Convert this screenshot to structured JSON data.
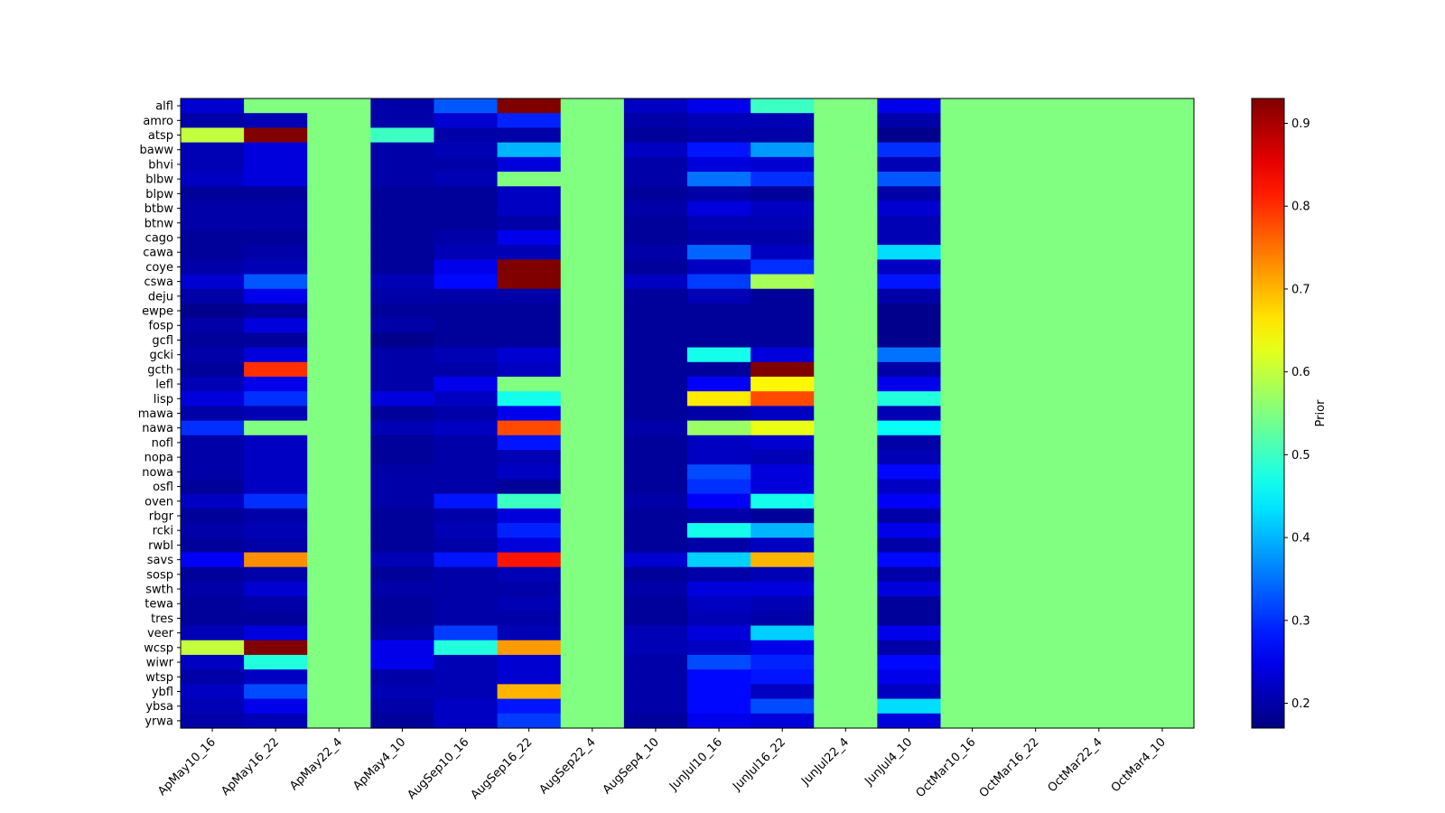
{
  "chart_data": {
    "type": "heatmap",
    "colormap": "jet",
    "categories_x": [
      "ApMay10_16",
      "ApMay16_22",
      "ApMay22_4",
      "ApMay4_10",
      "AugSep10_16",
      "AugSep16_22",
      "AugSep22_4",
      "AugSep4_10",
      "JunJul10_16",
      "JunJul16_22",
      "JunJul22_4",
      "JunJul4_10",
      "OctMar10_16",
      "OctMar16_22",
      "OctMar22_4",
      "OctMar4_10"
    ],
    "categories_y": [
      "alfl",
      "amro",
      "atsp",
      "baww",
      "bhvi",
      "blbw",
      "blpw",
      "btbw",
      "btnw",
      "cago",
      "cawa",
      "coye",
      "cswa",
      "deju",
      "ewpe",
      "fosp",
      "gcfl",
      "gcki",
      "gcth",
      "lefl",
      "lisp",
      "mawa",
      "nawa",
      "nofl",
      "nopa",
      "nowa",
      "osfl",
      "oven",
      "rbgr",
      "rcki",
      "rwbl",
      "savs",
      "sosp",
      "swth",
      "tewa",
      "tres",
      "veer",
      "wcsp",
      "wiwr",
      "wtsp",
      "ybfl",
      "ybsa",
      "yrwa"
    ],
    "values": [
      [
        0.23,
        0.55,
        0.55,
        0.2,
        0.33,
        0.93,
        0.55,
        0.22,
        0.25,
        0.5,
        0.55,
        0.25,
        0.55,
        0.55,
        0.55,
        0.55
      ],
      [
        0.2,
        0.21,
        0.55,
        0.2,
        0.23,
        0.29,
        0.55,
        0.2,
        0.21,
        0.21,
        0.55,
        0.2,
        0.55,
        0.55,
        0.55,
        0.55
      ],
      [
        0.6,
        0.93,
        0.55,
        0.5,
        0.2,
        0.2,
        0.55,
        0.19,
        0.2,
        0.2,
        0.55,
        0.18,
        0.55,
        0.55,
        0.55,
        0.55
      ],
      [
        0.21,
        0.24,
        0.55,
        0.2,
        0.21,
        0.4,
        0.55,
        0.22,
        0.28,
        0.38,
        0.55,
        0.3,
        0.55,
        0.55,
        0.55,
        0.55
      ],
      [
        0.21,
        0.24,
        0.55,
        0.2,
        0.2,
        0.24,
        0.55,
        0.2,
        0.24,
        0.23,
        0.55,
        0.21,
        0.55,
        0.55,
        0.55,
        0.55
      ],
      [
        0.22,
        0.24,
        0.55,
        0.2,
        0.21,
        0.55,
        0.55,
        0.2,
        0.35,
        0.3,
        0.55,
        0.33,
        0.55,
        0.55,
        0.55,
        0.55
      ],
      [
        0.19,
        0.19,
        0.55,
        0.19,
        0.19,
        0.22,
        0.55,
        0.19,
        0.2,
        0.19,
        0.55,
        0.2,
        0.55,
        0.55,
        0.55,
        0.55
      ],
      [
        0.2,
        0.2,
        0.55,
        0.19,
        0.19,
        0.22,
        0.55,
        0.2,
        0.24,
        0.22,
        0.55,
        0.23,
        0.55,
        0.55,
        0.55,
        0.55
      ],
      [
        0.2,
        0.2,
        0.55,
        0.19,
        0.19,
        0.2,
        0.55,
        0.19,
        0.21,
        0.21,
        0.55,
        0.21,
        0.55,
        0.55,
        0.55,
        0.55
      ],
      [
        0.19,
        0.19,
        0.55,
        0.19,
        0.2,
        0.25,
        0.55,
        0.19,
        0.2,
        0.2,
        0.55,
        0.21,
        0.55,
        0.55,
        0.55,
        0.55
      ],
      [
        0.19,
        0.2,
        0.55,
        0.19,
        0.21,
        0.21,
        0.55,
        0.2,
        0.34,
        0.22,
        0.55,
        0.43,
        0.55,
        0.55,
        0.55,
        0.55
      ],
      [
        0.2,
        0.21,
        0.55,
        0.19,
        0.25,
        0.93,
        0.55,
        0.19,
        0.22,
        0.3,
        0.55,
        0.22,
        0.55,
        0.55,
        0.55,
        0.55
      ],
      [
        0.23,
        0.33,
        0.55,
        0.21,
        0.27,
        0.93,
        0.55,
        0.22,
        0.31,
        0.58,
        0.55,
        0.28,
        0.55,
        0.55,
        0.55,
        0.55
      ],
      [
        0.2,
        0.25,
        0.55,
        0.2,
        0.2,
        0.2,
        0.55,
        0.19,
        0.21,
        0.19,
        0.55,
        0.2,
        0.55,
        0.55,
        0.55,
        0.55
      ],
      [
        0.18,
        0.19,
        0.55,
        0.19,
        0.19,
        0.19,
        0.55,
        0.19,
        0.19,
        0.19,
        0.55,
        0.18,
        0.55,
        0.55,
        0.55,
        0.55
      ],
      [
        0.2,
        0.24,
        0.55,
        0.2,
        0.19,
        0.19,
        0.55,
        0.19,
        0.19,
        0.19,
        0.55,
        0.18,
        0.55,
        0.55,
        0.55,
        0.55
      ],
      [
        0.19,
        0.19,
        0.55,
        0.18,
        0.19,
        0.19,
        0.55,
        0.19,
        0.19,
        0.19,
        0.55,
        0.18,
        0.55,
        0.55,
        0.55,
        0.55
      ],
      [
        0.2,
        0.24,
        0.55,
        0.2,
        0.21,
        0.23,
        0.55,
        0.19,
        0.47,
        0.24,
        0.55,
        0.35,
        0.55,
        0.55,
        0.55,
        0.55
      ],
      [
        0.19,
        0.8,
        0.55,
        0.2,
        0.2,
        0.22,
        0.55,
        0.19,
        0.19,
        0.93,
        0.55,
        0.2,
        0.55,
        0.55,
        0.55,
        0.55
      ],
      [
        0.21,
        0.25,
        0.55,
        0.2,
        0.25,
        0.55,
        0.55,
        0.19,
        0.26,
        0.65,
        0.55,
        0.25,
        0.55,
        0.55,
        0.55,
        0.55
      ],
      [
        0.24,
        0.3,
        0.55,
        0.24,
        0.22,
        0.47,
        0.55,
        0.19,
        0.66,
        0.78,
        0.55,
        0.48,
        0.55,
        0.55,
        0.55,
        0.55
      ],
      [
        0.2,
        0.21,
        0.55,
        0.19,
        0.2,
        0.25,
        0.55,
        0.19,
        0.2,
        0.22,
        0.55,
        0.21,
        0.55,
        0.55,
        0.55,
        0.55
      ],
      [
        0.3,
        0.55,
        0.55,
        0.21,
        0.22,
        0.78,
        0.55,
        0.2,
        0.57,
        0.63,
        0.55,
        0.46,
        0.55,
        0.55,
        0.55,
        0.55
      ],
      [
        0.2,
        0.22,
        0.55,
        0.19,
        0.2,
        0.28,
        0.55,
        0.19,
        0.22,
        0.23,
        0.55,
        0.2,
        0.55,
        0.55,
        0.55,
        0.55
      ],
      [
        0.2,
        0.22,
        0.55,
        0.19,
        0.2,
        0.21,
        0.55,
        0.19,
        0.22,
        0.21,
        0.55,
        0.21,
        0.55,
        0.55,
        0.55,
        0.55
      ],
      [
        0.2,
        0.22,
        0.55,
        0.2,
        0.2,
        0.22,
        0.55,
        0.19,
        0.32,
        0.24,
        0.55,
        0.27,
        0.55,
        0.55,
        0.55,
        0.55
      ],
      [
        0.19,
        0.22,
        0.55,
        0.2,
        0.2,
        0.19,
        0.55,
        0.19,
        0.3,
        0.24,
        0.55,
        0.22,
        0.55,
        0.55,
        0.55,
        0.55
      ],
      [
        0.22,
        0.3,
        0.55,
        0.2,
        0.28,
        0.5,
        0.55,
        0.2,
        0.26,
        0.47,
        0.55,
        0.26,
        0.55,
        0.55,
        0.55,
        0.55
      ],
      [
        0.19,
        0.2,
        0.55,
        0.19,
        0.2,
        0.24,
        0.55,
        0.19,
        0.2,
        0.19,
        0.55,
        0.2,
        0.55,
        0.55,
        0.55,
        0.55
      ],
      [
        0.2,
        0.21,
        0.55,
        0.19,
        0.21,
        0.29,
        0.55,
        0.19,
        0.47,
        0.4,
        0.55,
        0.25,
        0.55,
        0.55,
        0.55,
        0.55
      ],
      [
        0.19,
        0.2,
        0.55,
        0.19,
        0.2,
        0.24,
        0.55,
        0.19,
        0.2,
        0.22,
        0.55,
        0.2,
        0.55,
        0.55,
        0.55,
        0.55
      ],
      [
        0.26,
        0.73,
        0.55,
        0.21,
        0.28,
        0.82,
        0.55,
        0.23,
        0.42,
        0.7,
        0.55,
        0.27,
        0.55,
        0.55,
        0.55,
        0.55
      ],
      [
        0.19,
        0.2,
        0.55,
        0.19,
        0.2,
        0.21,
        0.55,
        0.19,
        0.2,
        0.21,
        0.55,
        0.2,
        0.55,
        0.55,
        0.55,
        0.55
      ],
      [
        0.2,
        0.23,
        0.55,
        0.2,
        0.2,
        0.2,
        0.55,
        0.2,
        0.24,
        0.24,
        0.55,
        0.24,
        0.55,
        0.55,
        0.55,
        0.55
      ],
      [
        0.19,
        0.2,
        0.55,
        0.19,
        0.2,
        0.21,
        0.55,
        0.19,
        0.22,
        0.21,
        0.55,
        0.19,
        0.55,
        0.55,
        0.55,
        0.55
      ],
      [
        0.19,
        0.19,
        0.55,
        0.19,
        0.2,
        0.2,
        0.55,
        0.19,
        0.21,
        0.2,
        0.55,
        0.19,
        0.55,
        0.55,
        0.55,
        0.55
      ],
      [
        0.21,
        0.24,
        0.55,
        0.2,
        0.31,
        0.21,
        0.55,
        0.21,
        0.24,
        0.42,
        0.55,
        0.25,
        0.55,
        0.55,
        0.55,
        0.55
      ],
      [
        0.6,
        0.93,
        0.55,
        0.25,
        0.48,
        0.72,
        0.55,
        0.21,
        0.22,
        0.25,
        0.55,
        0.2,
        0.55,
        0.55,
        0.55,
        0.55
      ],
      [
        0.22,
        0.48,
        0.55,
        0.25,
        0.21,
        0.23,
        0.55,
        0.2,
        0.32,
        0.29,
        0.55,
        0.27,
        0.55,
        0.55,
        0.55,
        0.55
      ],
      [
        0.2,
        0.22,
        0.55,
        0.2,
        0.21,
        0.23,
        0.55,
        0.2,
        0.27,
        0.28,
        0.55,
        0.25,
        0.55,
        0.55,
        0.55,
        0.55
      ],
      [
        0.22,
        0.32,
        0.55,
        0.21,
        0.21,
        0.7,
        0.55,
        0.2,
        0.27,
        0.22,
        0.55,
        0.22,
        0.55,
        0.55,
        0.55,
        0.55
      ],
      [
        0.21,
        0.25,
        0.55,
        0.2,
        0.22,
        0.28,
        0.55,
        0.2,
        0.27,
        0.32,
        0.55,
        0.43,
        0.55,
        0.55,
        0.55,
        0.55
      ],
      [
        0.2,
        0.21,
        0.55,
        0.19,
        0.22,
        0.31,
        0.55,
        0.19,
        0.25,
        0.24,
        0.55,
        0.24,
        0.55,
        0.55,
        0.55,
        0.55
      ]
    ],
    "vmin": 0.17,
    "vmax": 0.93,
    "colorbar": {
      "label": "Prior",
      "ticks": [
        0.2,
        0.3,
        0.4,
        0.5,
        0.6,
        0.7,
        0.8,
        0.9
      ],
      "tick_labels": [
        "0.2",
        "0.3",
        "0.4",
        "0.5",
        "0.6",
        "0.7",
        "0.8",
        "0.9"
      ]
    },
    "title": "",
    "xlabel": "",
    "ylabel": ""
  }
}
